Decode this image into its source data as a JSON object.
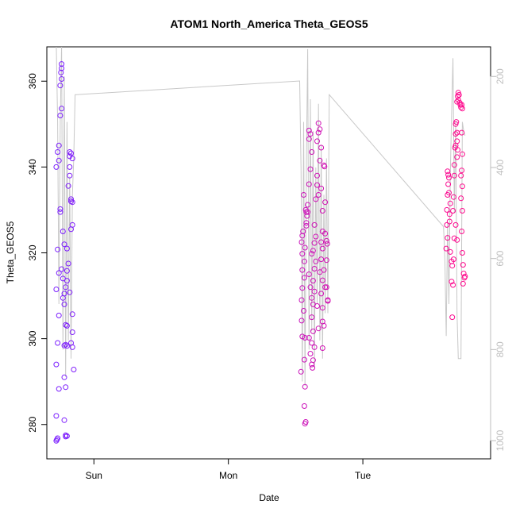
{
  "chart_data": {
    "type": "scatter",
    "title": "ATOM1 North_America Theta_GEOS5",
    "xlabel": "Date",
    "ylabel": "Theta_GEOS5",
    "x_ticks": [
      {
        "label": "Sun",
        "t": 1.0
      },
      {
        "label": "Mon",
        "t": 2.0
      },
      {
        "label": "Tue",
        "t": 3.0
      }
    ],
    "xlim": [
      0.65,
      3.95
    ],
    "ylim": [
      272,
      368
    ],
    "y_ticks": [
      280,
      300,
      320,
      340,
      360
    ],
    "y2_ticks": [
      200,
      400,
      600,
      800,
      1000
    ],
    "y2lim": [
      1040,
      135
    ],
    "y2_axis_color": "#bebebe",
    "grid": false,
    "point_style": "open circle",
    "point_color_start": "#7b1fff",
    "point_color_end": "#ff0a8c",
    "pressure_line_color": "#c8c8c8",
    "pressure_line_note": "grey line plotted against the right-hand axis",
    "theta_points": [
      [
        0.72,
        276.2
      ],
      [
        0.725,
        276.5
      ],
      [
        0.73,
        276.8
      ],
      [
        0.72,
        282
      ],
      [
        0.74,
        288.3
      ],
      [
        0.72,
        294
      ],
      [
        0.73,
        299
      ],
      [
        0.74,
        305.4
      ],
      [
        0.72,
        311.5
      ],
      [
        0.74,
        315.3
      ],
      [
        0.73,
        320.8
      ],
      [
        0.75,
        330.2
      ],
      [
        0.72,
        340
      ],
      [
        0.74,
        341.5
      ],
      [
        0.73,
        343.5
      ],
      [
        0.74,
        345
      ],
      [
        0.75,
        352
      ],
      [
        0.76,
        353.6
      ],
      [
        0.75,
        359
      ],
      [
        0.76,
        360.5
      ],
      [
        0.755,
        362
      ],
      [
        0.76,
        363
      ],
      [
        0.76,
        364
      ],
      [
        0.75,
        329.5
      ],
      [
        0.77,
        325
      ],
      [
        0.78,
        322
      ],
      [
        0.76,
        316.2
      ],
      [
        0.77,
        314
      ],
      [
        0.78,
        310.5
      ],
      [
        0.77,
        309.5
      ],
      [
        0.78,
        308
      ],
      [
        0.79,
        312
      ],
      [
        0.8,
        313.5
      ],
      [
        0.8,
        315.8
      ],
      [
        0.81,
        317.5
      ],
      [
        0.8,
        321
      ],
      [
        0.81,
        335.6
      ],
      [
        0.82,
        338
      ],
      [
        0.82,
        340
      ],
      [
        0.82,
        342.5
      ],
      [
        0.83,
        343.2
      ],
      [
        0.82,
        343.5
      ],
      [
        0.84,
        342
      ],
      [
        0.83,
        332.5
      ],
      [
        0.83,
        332
      ],
      [
        0.84,
        331.8
      ],
      [
        0.84,
        326.5
      ],
      [
        0.83,
        325.5
      ],
      [
        0.82,
        310.8
      ],
      [
        0.8,
        303
      ],
      [
        0.79,
        303.2
      ],
      [
        0.78,
        298.4
      ],
      [
        0.79,
        298.6
      ],
      [
        0.8,
        298.3
      ],
      [
        0.83,
        299
      ],
      [
        0.84,
        298
      ],
      [
        0.84,
        301.5
      ],
      [
        0.84,
        305.7
      ],
      [
        0.85,
        292.8
      ],
      [
        0.78,
        291
      ],
      [
        0.79,
        288.7
      ],
      [
        0.78,
        281
      ],
      [
        0.79,
        277.2
      ],
      [
        0.79,
        277.5
      ],
      [
        0.8,
        277.3
      ],
      [
        2.54,
        292.3
      ],
      [
        2.545,
        304.2
      ],
      [
        2.55,
        300.5
      ],
      [
        2.545,
        309
      ],
      [
        2.55,
        311.8
      ],
      [
        2.55,
        316
      ],
      [
        2.55,
        319.8
      ],
      [
        2.545,
        322.5
      ],
      [
        2.55,
        324
      ],
      [
        2.555,
        325
      ],
      [
        2.56,
        333.5
      ],
      [
        2.57,
        321.2
      ],
      [
        2.565,
        318
      ],
      [
        2.565,
        314.2
      ],
      [
        2.56,
        306.5
      ],
      [
        2.57,
        300.2
      ],
      [
        2.565,
        295.1
      ],
      [
        2.57,
        288.8
      ],
      [
        2.565,
        284.3
      ],
      [
        2.57,
        280.2
      ],
      [
        2.575,
        280.6
      ],
      [
        2.575,
        330
      ],
      [
        2.58,
        329.5
      ],
      [
        2.585,
        328.6
      ],
      [
        2.58,
        327
      ],
      [
        2.58,
        326.3
      ],
      [
        2.59,
        331.2
      ],
      [
        2.59,
        329.5
      ],
      [
        2.6,
        336
      ],
      [
        2.6,
        346.5
      ],
      [
        2.6,
        348.5
      ],
      [
        2.61,
        347.7
      ],
      [
        2.62,
        343.5
      ],
      [
        2.61,
        339.5
      ],
      [
        2.6,
        315
      ],
      [
        2.61,
        312
      ],
      [
        2.62,
        309.5
      ],
      [
        2.6,
        300.2
      ],
      [
        2.62,
        299
      ],
      [
        2.61,
        296.5
      ],
      [
        2.62,
        294
      ],
      [
        2.625,
        293.2
      ],
      [
        2.63,
        295
      ],
      [
        2.64,
        298
      ],
      [
        2.63,
        301.7
      ],
      [
        2.62,
        305
      ],
      [
        2.63,
        308
      ],
      [
        2.64,
        311
      ],
      [
        2.63,
        313.5
      ],
      [
        2.64,
        316.3
      ],
      [
        2.62,
        319.8
      ],
      [
        2.63,
        320.5
      ],
      [
        2.64,
        322.3
      ],
      [
        2.65,
        323.8
      ],
      [
        2.64,
        326.5
      ],
      [
        2.65,
        332.5
      ],
      [
        2.66,
        335.8
      ],
      [
        2.66,
        338
      ],
      [
        2.67,
        333.5
      ],
      [
        2.66,
        346
      ],
      [
        2.67,
        348
      ],
      [
        2.67,
        350.2
      ],
      [
        2.68,
        348.8
      ],
      [
        2.69,
        344.5
      ],
      [
        2.68,
        341.5
      ],
      [
        2.69,
        335
      ],
      [
        2.7,
        329.8
      ],
      [
        2.7,
        325
      ],
      [
        2.69,
        322.5
      ],
      [
        2.7,
        321
      ],
      [
        2.69,
        318.5
      ],
      [
        2.68,
        315.5
      ],
      [
        2.7,
        313.6
      ],
      [
        2.69,
        310.5
      ],
      [
        2.7,
        307.2
      ],
      [
        2.7,
        304
      ],
      [
        2.71,
        303
      ],
      [
        2.71,
        340.4
      ],
      [
        2.715,
        340.1
      ],
      [
        2.72,
        331.8
      ],
      [
        2.72,
        324.5
      ],
      [
        2.73,
        322.8
      ],
      [
        2.735,
        322.1
      ],
      [
        2.73,
        318.3
      ],
      [
        2.72,
        312
      ],
      [
        2.73,
        312
      ],
      [
        2.74,
        309
      ],
      [
        2.74,
        308.8
      ],
      [
        2.71,
        316
      ],
      [
        2.7,
        297.8
      ],
      [
        2.67,
        302.4
      ],
      [
        2.65,
        318
      ],
      [
        2.66,
        307.6
      ],
      [
        3.62,
        321
      ],
      [
        3.625,
        326.5
      ],
      [
        3.63,
        323.5
      ],
      [
        3.625,
        330
      ],
      [
        3.63,
        333.5
      ],
      [
        3.635,
        336
      ],
      [
        3.63,
        339
      ],
      [
        3.635,
        338.2
      ],
      [
        3.64,
        337.5
      ],
      [
        3.64,
        334
      ],
      [
        3.645,
        329
      ],
      [
        3.65,
        331.5
      ],
      [
        3.645,
        327.3
      ],
      [
        3.65,
        320.2
      ],
      [
        3.66,
        318
      ],
      [
        3.665,
        317
      ],
      [
        3.66,
        313.3
      ],
      [
        3.67,
        312.5
      ],
      [
        3.665,
        305
      ],
      [
        3.67,
        329.8
      ],
      [
        3.675,
        333
      ],
      [
        3.68,
        338
      ],
      [
        3.68,
        340.5
      ],
      [
        3.685,
        344.5
      ],
      [
        3.69,
        345
      ],
      [
        3.69,
        347.7
      ],
      [
        3.695,
        350.5
      ],
      [
        3.69,
        350
      ],
      [
        3.7,
        348
      ],
      [
        3.7,
        346
      ],
      [
        3.705,
        344
      ],
      [
        3.7,
        342.3
      ],
      [
        3.7,
        355.2
      ],
      [
        3.705,
        356.5
      ],
      [
        3.71,
        357.3
      ],
      [
        3.715,
        356.8
      ],
      [
        3.71,
        355.6
      ],
      [
        3.72,
        355
      ],
      [
        3.725,
        354.5
      ],
      [
        3.73,
        353.9
      ],
      [
        3.735,
        354.5
      ],
      [
        3.74,
        353.6
      ],
      [
        3.735,
        348
      ],
      [
        3.74,
        343
      ],
      [
        3.735,
        339.2
      ],
      [
        3.73,
        338
      ],
      [
        3.74,
        335.5
      ],
      [
        3.73,
        332.7
      ],
      [
        3.74,
        329.8
      ],
      [
        3.735,
        325
      ],
      [
        3.74,
        320
      ],
      [
        3.745,
        317.2
      ],
      [
        3.75,
        315.2
      ],
      [
        3.755,
        314.2
      ],
      [
        3.76,
        314.5
      ],
      [
        3.745,
        312.8
      ],
      [
        3.7,
        323
      ],
      [
        3.69,
        326.5
      ],
      [
        3.68,
        323.4
      ],
      [
        3.675,
        318.5
      ]
    ],
    "pressure_line": [
      [
        0.72,
        130
      ],
      [
        0.73,
        300
      ],
      [
        0.74,
        700
      ],
      [
        0.75,
        300
      ],
      [
        0.76,
        130
      ],
      [
        0.77,
        800
      ],
      [
        0.78,
        200
      ],
      [
        0.79,
        860
      ],
      [
        0.8,
        300
      ],
      [
        0.81,
        780
      ],
      [
        0.82,
        420
      ],
      [
        0.83,
        820
      ],
      [
        0.84,
        460
      ],
      [
        0.85,
        380
      ],
      [
        0.86,
        240
      ],
      [
        0.87,
        240
      ],
      [
        2.53,
        210
      ],
      [
        2.54,
        400
      ],
      [
        2.55,
        870
      ],
      [
        2.56,
        300
      ],
      [
        2.57,
        880
      ],
      [
        2.58,
        400
      ],
      [
        2.59,
        140
      ],
      [
        2.6,
        800
      ],
      [
        2.61,
        250
      ],
      [
        2.62,
        760
      ],
      [
        2.63,
        320
      ],
      [
        2.64,
        840
      ],
      [
        2.65,
        400
      ],
      [
        2.66,
        700
      ],
      [
        2.67,
        260
      ],
      [
        2.68,
        780
      ],
      [
        2.69,
        350
      ],
      [
        2.7,
        820
      ],
      [
        2.71,
        460
      ],
      [
        2.72,
        720
      ],
      [
        2.73,
        380
      ],
      [
        2.74,
        720
      ],
      [
        2.75,
        240
      ],
      [
        3.6,
        530
      ],
      [
        3.61,
        600
      ],
      [
        3.62,
        770
      ],
      [
        3.63,
        520
      ],
      [
        3.64,
        700
      ],
      [
        3.65,
        420
      ],
      [
        3.66,
        280
      ],
      [
        3.67,
        160
      ],
      [
        3.68,
        500
      ],
      [
        3.69,
        300
      ],
      [
        3.7,
        720
      ],
      [
        3.71,
        820
      ],
      [
        3.72,
        820
      ],
      [
        3.73,
        820
      ],
      [
        3.74,
        300
      ],
      [
        3.75,
        320
      ],
      [
        3.76,
        330
      ]
    ]
  }
}
